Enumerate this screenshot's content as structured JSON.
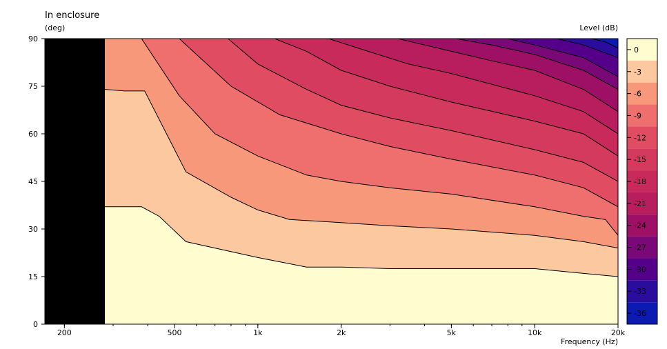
{
  "chart_data": {
    "type": "heatmap",
    "title": "In enclosure",
    "ylabel": "(deg)",
    "xlabel": "Frequency  (Hz)",
    "legend_title": "Level  (dB)",
    "x_scale": "log",
    "xlim": [
      170,
      20000
    ],
    "ylim": [
      0,
      90
    ],
    "x_tick_labels": [
      {
        "value": 200,
        "label": "200"
      },
      {
        "value": 500,
        "label": "500"
      },
      {
        "value": 1000,
        "label": "1k"
      },
      {
        "value": 2000,
        "label": "2k"
      },
      {
        "value": 5000,
        "label": "5k"
      },
      {
        "value": 10000,
        "label": "10k"
      },
      {
        "value": 20000,
        "label": "20k"
      }
    ],
    "y_tick_labels": [
      {
        "value": 90,
        "label": "90"
      },
      {
        "value": 75,
        "label": "75"
      },
      {
        "value": 60,
        "label": "60"
      },
      {
        "value": 45,
        "label": "45"
      },
      {
        "value": 30,
        "label": "30"
      },
      {
        "value": 15,
        "label": "15"
      },
      {
        "value": 0,
        "label": "0"
      }
    ],
    "no_data_below_hz": 280,
    "levels": [
      "0",
      "-3",
      "-6",
      "-9",
      "-12",
      "-15",
      "-18",
      "-21",
      "-24",
      "-27",
      "-30",
      "-33",
      "-36"
    ],
    "level_colors": [
      "#fffdd0",
      "#fbc8a0",
      "#f7987a",
      "#ef6e6e",
      "#e04d62",
      "#d43a5e",
      "#c82a5c",
      "#b81e5d",
      "#9e1066",
      "#7a0877",
      "#55008b",
      "#2a0d9c",
      "#0b1ab0"
    ],
    "contours": [
      {
        "level": "-3",
        "x": [
          280,
          380,
          440,
          550,
          1000,
          1500,
          2000,
          3000,
          5000,
          10000,
          15000,
          20000
        ],
        "y": [
          37,
          37,
          34,
          26,
          21,
          18,
          18,
          17.5,
          17.5,
          17.5,
          16,
          15
        ]
      },
      {
        "level": "-6",
        "x": [
          280,
          330,
          390,
          420,
          550,
          800,
          1000,
          1300,
          2000,
          3000,
          5000,
          10000,
          15000,
          20000
        ],
        "y": [
          74,
          73.5,
          73.5,
          68,
          48,
          40,
          36,
          33,
          32,
          31,
          30,
          28,
          26,
          24
        ]
      },
      {
        "level": "-9",
        "x": [
          380,
          520,
          700,
          1000,
          1500,
          2000,
          3000,
          5000,
          10000,
          15000,
          18000,
          20000
        ],
        "y": [
          90,
          72,
          60,
          53,
          47,
          45,
          43,
          41,
          37,
          34,
          33,
          28
        ]
      },
      {
        "level": "-12",
        "x": [
          520,
          800,
          1200,
          2000,
          3000,
          5000,
          10000,
          15000,
          20000
        ],
        "y": [
          90,
          75,
          66,
          60,
          56,
          52,
          47,
          43,
          37
        ]
      },
      {
        "level": "-15",
        "x": [
          780,
          1000,
          1500,
          2000,
          3000,
          5000,
          10000,
          15000,
          20000
        ],
        "y": [
          90,
          82,
          74,
          69,
          65,
          61,
          55,
          51,
          45
        ]
      },
      {
        "level": "-18",
        "x": [
          1150,
          1500,
          2000,
          3000,
          5000,
          10000,
          15000,
          20000
        ],
        "y": [
          90,
          86,
          80,
          75,
          70,
          64,
          60,
          53
        ]
      },
      {
        "level": "-21",
        "x": [
          1800,
          2500,
          3500,
          5000,
          10000,
          15000,
          20000
        ],
        "y": [
          90,
          86,
          82,
          79,
          72,
          67,
          60
        ]
      },
      {
        "level": "-24",
        "x": [
          3200,
          5000,
          7000,
          10000,
          15000,
          20000
        ],
        "y": [
          90,
          86,
          83,
          80,
          74,
          67
        ]
      },
      {
        "level": "-27",
        "x": [
          5200,
          7000,
          10000,
          15000,
          20000
        ],
        "y": [
          90,
          88,
          85,
          80,
          74
        ]
      },
      {
        "level": "-30",
        "x": [
          8000,
          10000,
          15000,
          20000
        ],
        "y": [
          90,
          88,
          84,
          78
        ]
      },
      {
        "level": "-33",
        "x": [
          12000,
          15000,
          20000
        ],
        "y": [
          90,
          88,
          84
        ]
      },
      {
        "level": "-36",
        "x": [
          16000,
          18000,
          20000
        ],
        "y": [
          90,
          89,
          87
        ]
      }
    ]
  }
}
